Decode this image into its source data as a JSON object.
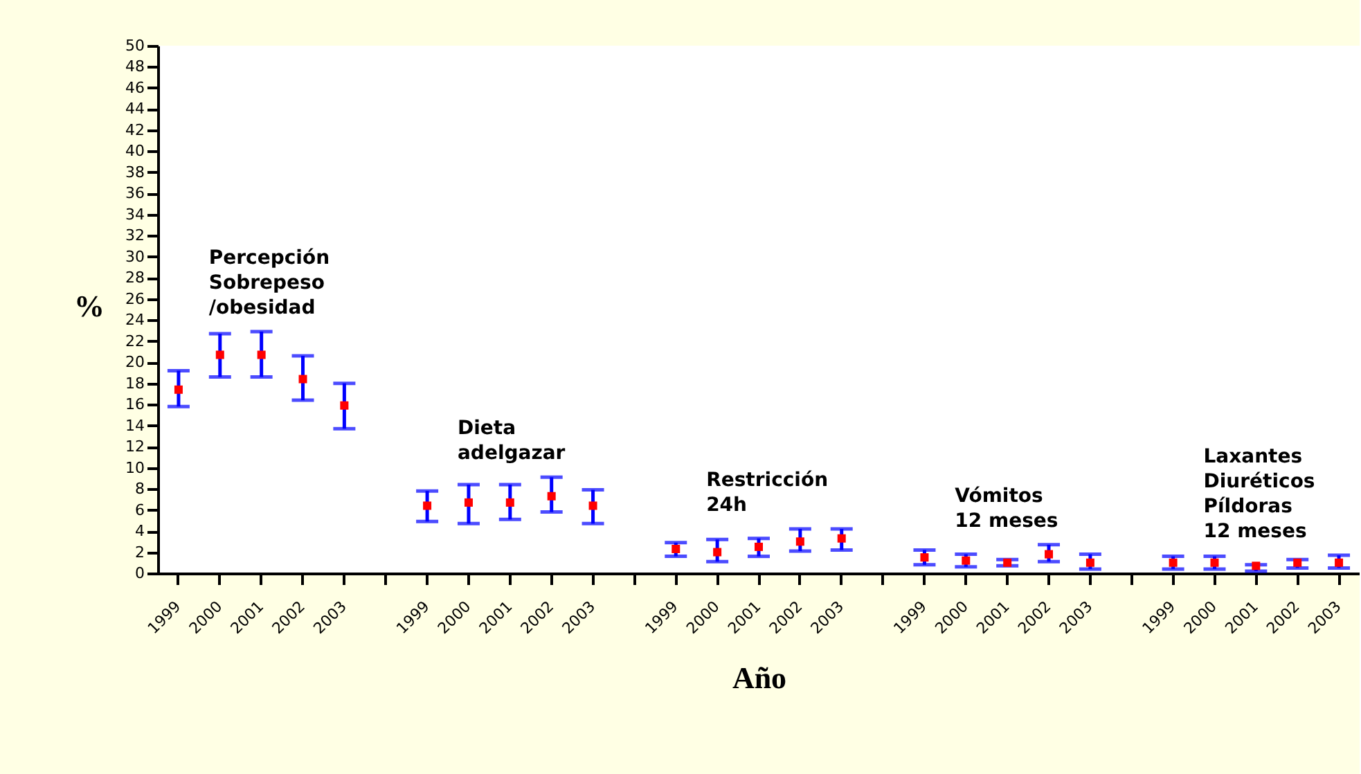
{
  "chart_data": {
    "type": "scatter",
    "xlabel": "Año",
    "ylabel": "%",
    "categories": [
      "1999",
      "2000",
      "2001",
      "2002",
      "2003",
      null,
      "1999",
      "2000",
      "2001",
      "2002",
      "2003",
      null,
      "1999",
      "2000",
      "2001",
      "2002",
      "2003",
      null,
      "1999",
      "2000",
      "2001",
      "2002",
      "2003",
      null,
      "1999",
      "2000",
      "2001",
      "2002",
      "2003"
    ],
    "series": [
      {
        "color": "#ff0000",
        "values": [
          17.4,
          20.7,
          20.7,
          18.4,
          15.9,
          null,
          6.4,
          6.7,
          6.7,
          7.3,
          6.4,
          null,
          2.3,
          2.0,
          2.5,
          3.0,
          3.3,
          null,
          1.5,
          1.2,
          1.0,
          1.8,
          1.0,
          null,
          1.0,
          1.0,
          0.7,
          1.0,
          1.0
        ],
        "errors": [
          [
            15.8,
            19.2
          ],
          [
            18.6,
            22.7
          ],
          [
            18.6,
            22.9
          ],
          [
            16.4,
            20.6
          ],
          [
            13.7,
            18.0
          ],
          null,
          [
            4.9,
            7.8
          ],
          [
            4.7,
            8.4
          ],
          [
            5.1,
            8.4
          ],
          [
            5.8,
            9.1
          ],
          [
            4.7,
            7.9
          ],
          null,
          [
            1.6,
            2.9
          ],
          [
            1.1,
            3.2
          ],
          [
            1.6,
            3.3
          ],
          [
            2.1,
            4.2
          ],
          [
            2.2,
            4.2
          ],
          null,
          [
            0.8,
            2.2
          ],
          [
            0.6,
            1.8
          ],
          [
            0.7,
            1.3
          ],
          [
            1.1,
            2.7
          ],
          [
            0.4,
            1.8
          ],
          null,
          [
            0.4,
            1.6
          ],
          [
            0.4,
            1.6
          ],
          [
            0.2,
            0.8
          ],
          [
            0.5,
            1.3
          ],
          [
            0.5,
            1.7
          ]
        ]
      }
    ],
    "marker": "square",
    "ylim": [
      0,
      50
    ],
    "yticks": [
      0,
      2,
      4,
      6,
      8,
      10,
      12,
      14,
      16,
      18,
      20,
      22,
      24,
      26,
      28,
      30,
      32,
      34,
      36,
      38,
      40,
      42,
      44,
      46,
      48,
      50
    ],
    "grid": false,
    "annotations": [
      "Percepción\nSobrepeso\n/obesidad",
      "Dieta\nadelgazar",
      "Restricción\n24h",
      "Vómitos\n12 meses",
      "Laxantes\nDiuréticos\nPíldoras\n12 meses"
    ]
  }
}
